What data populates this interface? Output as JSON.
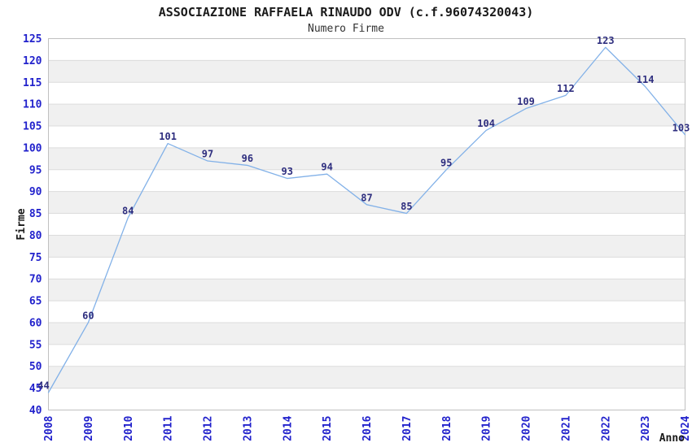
{
  "chart_data": {
    "type": "line",
    "title": "ASSOCIAZIONE RAFFAELA RINAUDO ODV (c.f.96074320043)",
    "subtitle": "Numero Firme",
    "xlabel": "Anno",
    "ylabel": "Firme",
    "categories": [
      "2008",
      "2009",
      "2010",
      "2011",
      "2012",
      "2013",
      "2014",
      "2015",
      "2016",
      "2017",
      "2018",
      "2019",
      "2020",
      "2021",
      "2022",
      "2023",
      "2024"
    ],
    "values": [
      44,
      60,
      84,
      101,
      97,
      96,
      93,
      94,
      87,
      85,
      95,
      104,
      109,
      112,
      123,
      114,
      103
    ],
    "ylim": [
      40,
      125
    ],
    "ytick_step": 5,
    "grid": "horizontal-bands-on",
    "legend": "none",
    "data_labels_visible": true,
    "colors": {
      "line": "#82b1e8",
      "data_label": "#2e2e7f",
      "axis_tick_label": "#2222cc",
      "band_fill": "#f0f0f0",
      "gridline": "#dcdcdc",
      "plot_border": "#c0c0c0",
      "title_text": "#1a1a1a",
      "axis_title_text": "#1a1a1a"
    }
  }
}
